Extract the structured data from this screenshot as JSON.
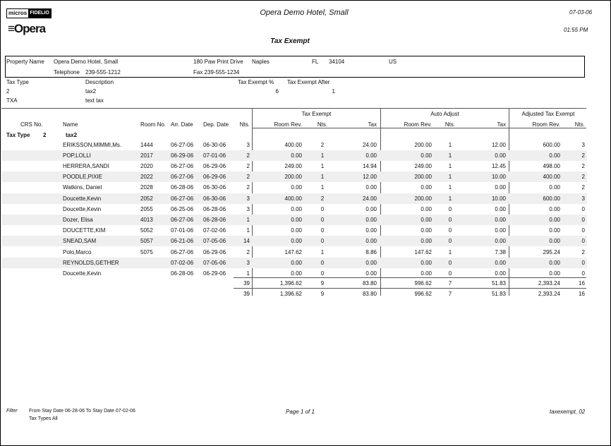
{
  "header": {
    "logo_micros": "micros",
    "logo_fidelio": "FIDELIO",
    "logo_opera": "Opera",
    "hotel": "Opera Demo Hotel, Small",
    "date": "07-03-06",
    "time": "01:55 PM",
    "report_title": "Tax Exempt"
  },
  "property": {
    "name_label": "Property Name",
    "name": "Opera Demo Hotel, Small",
    "address": "180 Paw Print Drive",
    "city": "Naples",
    "state": "FL",
    "zip": "34104",
    "country": "US",
    "phone_label": "Telephone",
    "phone": "239-555-1212",
    "fax": "Fax 239-555-1234"
  },
  "tax_types": {
    "headers": [
      "Tax Type",
      "Description",
      "Tax Exempt %",
      "Tax Exempt After"
    ],
    "rows": [
      [
        "2",
        "tax2",
        "6",
        "1"
      ],
      [
        "TXA",
        "text tax",
        "",
        ""
      ]
    ]
  },
  "table": {
    "groups": [
      "Tax Exempt",
      "Auto Adjust",
      "Adjusted Tax Exempt"
    ],
    "columns": [
      "CRS No.",
      "Name",
      "Room No.",
      "Arr. Date",
      "Dep. Date",
      "Nts.",
      "Room Rev.",
      "Nts.",
      "Tax",
      "Room Rev.",
      "Nts.",
      "Tax",
      "Room Rev.",
      "Nts."
    ],
    "group_label": "Tax Type",
    "group_code": "2",
    "group_desc": "tax2",
    "rows": [
      [
        "ERIKSSON,MIMMI,Ms.",
        "1444",
        "06-27-06",
        "06-30-06",
        "3",
        "400.00",
        "2",
        "24.00",
        "200.00",
        "1",
        "12.00",
        "600.00",
        "3"
      ],
      [
        "POP,LOLLI",
        "2017",
        "06-29-06",
        "07-01-06",
        "2",
        "0.00",
        "1",
        "0.00",
        "0.00",
        "1",
        "0.00",
        "0.00",
        "2"
      ],
      [
        "HERRERA,SANDI",
        "2020",
        "06-27-06",
        "06-29-06",
        "2",
        "249.00",
        "1",
        "14.94",
        "249.00",
        "1",
        "12.45",
        "498.00",
        "2"
      ],
      [
        "POODLE,PIXIE",
        "2022",
        "06-27-06",
        "06-29-06",
        "2",
        "200.00",
        "1",
        "12.00",
        "200.00",
        "1",
        "10.00",
        "400.00",
        "2"
      ],
      [
        "Watkins, Daniel",
        "2028",
        "06-28-06",
        "06-30-06",
        "2",
        "0.00",
        "1",
        "0.00",
        "0.00",
        "1",
        "0.00",
        "0.00",
        "2"
      ],
      [
        "Doucette,Kevin",
        "2052",
        "06-27-06",
        "06-30-06",
        "3",
        "400.00",
        "2",
        "24.00",
        "200.00",
        "1",
        "10.00",
        "600.00",
        "3"
      ],
      [
        "Doucette,Kevin",
        "2055",
        "06-25-06",
        "06-28-06",
        "3",
        "0.00",
        "0",
        "0.00",
        "0.00",
        "0",
        "0.00",
        "0.00",
        "0"
      ],
      [
        "Dozer, Elisa",
        "4013",
        "06-27-06",
        "06-28-06",
        "1",
        "0.00",
        "0",
        "0.00",
        "0.00",
        "0",
        "0.00",
        "0.00",
        "0"
      ],
      [
        "DOUCETTE,KIM",
        "5052",
        "07-01-06",
        "07-02-06",
        "1",
        "0.00",
        "0",
        "0.00",
        "0.00",
        "0",
        "0.00",
        "0.00",
        "0"
      ],
      [
        "SNEAD,SAM",
        "5057",
        "06-21-06",
        "07-05-06",
        "14",
        "0.00",
        "0",
        "0.00",
        "0.00",
        "0",
        "0.00",
        "0.00",
        "0"
      ],
      [
        "Polo,Marco",
        "5075",
        "06-27-06",
        "06-29-06",
        "2",
        "147.62",
        "1",
        "8.86",
        "147.62",
        "1",
        "7.38",
        "295.24",
        "2"
      ],
      [
        "REYNOLDS,GETHER",
        "",
        "07-02-06",
        "07-05-06",
        "3",
        "0.00",
        "0",
        "0.00",
        "0.00",
        "0",
        "0.00",
        "0.00",
        "0"
      ],
      [
        "Doucette,Kevin",
        "",
        "06-28-06",
        "06-29-06",
        "1",
        "0.00",
        "0",
        "0.00",
        "0.00",
        "0",
        "0.00",
        "0.00",
        "0"
      ]
    ],
    "totals": [
      [
        "39",
        "1,396.62",
        "9",
        "83.80",
        "996.62",
        "7",
        "51.83",
        "2,393.24",
        "16"
      ],
      [
        "39",
        "1,396.62",
        "9",
        "83.80",
        "996.62",
        "7",
        "51.83",
        "2,393.24",
        "16"
      ]
    ]
  },
  "footer": {
    "filter_label": "Filter",
    "filter_line1": "From Stay Date 06-28-06   To Stay Date 07-02-06",
    "filter_line2": "Tax Types All",
    "page": "Page 1 of 1",
    "report_id": "taxexempt_02"
  }
}
